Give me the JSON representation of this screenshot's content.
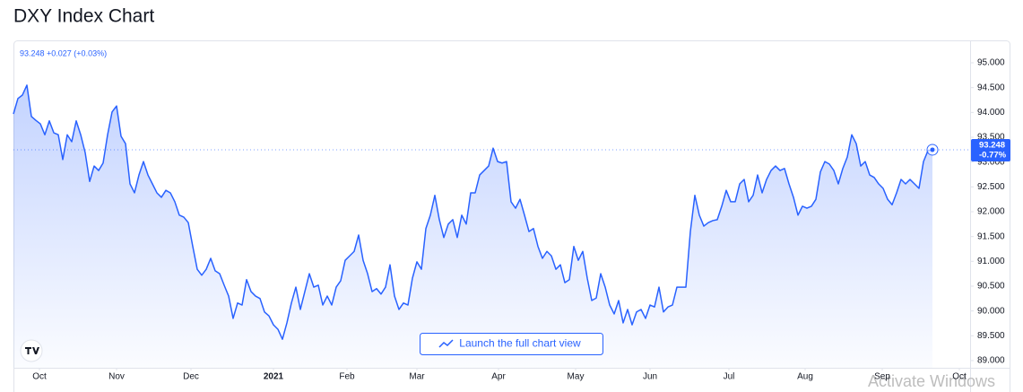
{
  "chart_data": {
    "type": "area",
    "title": "DXY Index Chart",
    "legend_text": "93.248 +0.027 (+0.03%)",
    "price_tag": "93.248",
    "price_change": "-0.77%",
    "button_text": "Launch the full chart view",
    "watermark": "Activate Windows",
    "color": "#2962ff",
    "values": [
      93.97,
      94.28,
      94.35,
      94.55,
      93.92,
      93.84,
      93.77,
      93.55,
      93.83,
      93.59,
      93.55,
      93.05,
      93.55,
      93.41,
      93.83,
      93.55,
      93.19,
      92.61,
      92.92,
      92.83,
      92.98,
      93.55,
      94.01,
      94.13,
      93.52,
      93.37,
      92.56,
      92.38,
      92.74,
      93.01,
      92.74,
      92.56,
      92.38,
      92.29,
      92.43,
      92.38,
      92.2,
      91.93,
      91.89,
      91.78,
      91.3,
      90.84,
      90.72,
      90.84,
      91.06,
      90.81,
      90.75,
      90.52,
      90.3,
      89.85,
      90.16,
      90.12,
      90.63,
      90.39,
      90.3,
      90.25,
      89.98,
      89.9,
      89.72,
      89.63,
      89.43,
      89.76,
      90.16,
      90.48,
      90.03,
      90.39,
      90.75,
      90.48,
      90.52,
      90.12,
      90.3,
      90.12,
      90.48,
      90.61,
      91.02,
      91.11,
      91.2,
      91.53,
      91.02,
      90.75,
      90.39,
      90.45,
      90.34,
      90.48,
      90.93,
      90.3,
      90.03,
      90.16,
      90.12,
      90.66,
      90.99,
      90.84,
      91.66,
      91.93,
      92.33,
      91.84,
      91.48,
      91.75,
      91.84,
      91.48,
      91.93,
      91.75,
      92.38,
      92.38,
      92.74,
      92.83,
      92.92,
      93.28,
      93.01,
      92.98,
      93.01,
      92.2,
      92.07,
      92.25,
      91.93,
      91.6,
      91.66,
      91.3,
      91.06,
      91.2,
      91.11,
      90.84,
      90.93,
      90.57,
      90.63,
      91.3,
      91.02,
      91.2,
      90.66,
      90.21,
      90.26,
      90.75,
      90.48,
      90.12,
      89.94,
      90.21,
      89.76,
      90.03,
      89.72,
      89.98,
      90.03,
      89.85,
      90.12,
      90.08,
      90.48,
      89.98,
      90.08,
      90.12,
      90.48,
      90.48,
      90.48,
      91.6,
      92.33,
      91.93,
      91.71,
      91.78,
      91.82,
      91.84,
      92.11,
      92.43,
      92.2,
      92.2,
      92.56,
      92.65,
      92.2,
      92.33,
      92.74,
      92.38,
      92.65,
      92.83,
      92.92,
      92.83,
      92.87,
      92.56,
      92.29,
      91.93,
      92.11,
      92.07,
      92.11,
      92.25,
      92.8,
      93.01,
      92.96,
      92.83,
      92.56,
      92.87,
      93.1,
      93.55,
      93.37,
      92.92,
      93.01,
      92.74,
      92.69,
      92.56,
      92.47,
      92.25,
      92.14,
      92.38,
      92.65,
      92.56,
      92.65,
      92.56,
      92.47,
      93.01,
      93.23,
      93.248
    ],
    "xlim": [
      0,
      213.4
    ],
    "xticks": [
      {
        "value": 5.8,
        "label": "Oct"
      },
      {
        "value": 23,
        "label": "Nov"
      },
      {
        "value": 39.6,
        "label": "Dec"
      },
      {
        "value": 58,
        "label": "2021"
      },
      {
        "value": 74.4,
        "label": "Feb"
      },
      {
        "value": 90,
        "label": "Mar"
      },
      {
        "value": 108.2,
        "label": "Apr"
      },
      {
        "value": 125.4,
        "label": "May"
      },
      {
        "value": 142,
        "label": "Jun"
      },
      {
        "value": 159.6,
        "label": "Jul"
      },
      {
        "value": 176.6,
        "label": "Aug"
      },
      {
        "value": 193.8,
        "label": "Sep"
      },
      {
        "value": 211,
        "label": "Oct"
      }
    ],
    "ylim": [
      88.855,
      95.452
    ],
    "yticks": [
      {
        "value": 89,
        "label": "89.000"
      },
      {
        "value": 89.5,
        "label": "89.500"
      },
      {
        "value": 90,
        "label": "90.000"
      },
      {
        "value": 90.5,
        "label": "90.500"
      },
      {
        "value": 91,
        "label": "91.000"
      },
      {
        "value": 91.5,
        "label": "91.500"
      },
      {
        "value": 92,
        "label": "92.000"
      },
      {
        "value": 92.5,
        "label": "92.500"
      },
      {
        "value": 93,
        "label": "93.000"
      },
      {
        "value": 93.5,
        "label": "93.500"
      },
      {
        "value": 94,
        "label": "94.000"
      },
      {
        "value": 94.5,
        "label": "94.500"
      },
      {
        "value": 95,
        "label": "95.000"
      }
    ]
  }
}
